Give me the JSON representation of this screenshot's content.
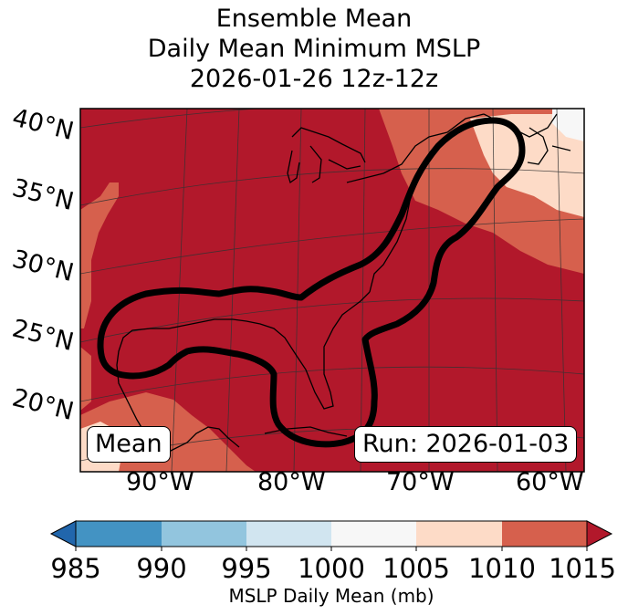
{
  "title": {
    "line1": "Ensemble Mean",
    "line2": "Daily Mean Minimum MSLP",
    "line3": "2026-01-26 12z-12z"
  },
  "map": {
    "lat_labels": [
      "40°N",
      "35°N",
      "30°N",
      "25°N",
      "20°N"
    ],
    "lon_labels": [
      "90°W",
      "80°W",
      "70°W",
      "60°W"
    ],
    "mean_label": "Mean",
    "run_label": "Run: 2026-01-03",
    "contour_color": "#000000",
    "field_colors": {
      "c1005_1010": "#fddbc7",
      "c1010_1015": "#d6604d",
      "c1015_plus": "#b2182b",
      "c1000_1005": "#f7f7f7"
    }
  },
  "colorbar": {
    "label": "MSLP Daily Mean (mb)",
    "ticks": [
      "985",
      "990",
      "995",
      "1000",
      "1005",
      "1010",
      "1015"
    ],
    "colors": [
      "#4393c3",
      "#92c5de",
      "#d1e5f0",
      "#f7f7f7",
      "#fddbc7",
      "#d6604d"
    ],
    "under_color": "#2166ac",
    "over_color": "#b2182b"
  }
}
